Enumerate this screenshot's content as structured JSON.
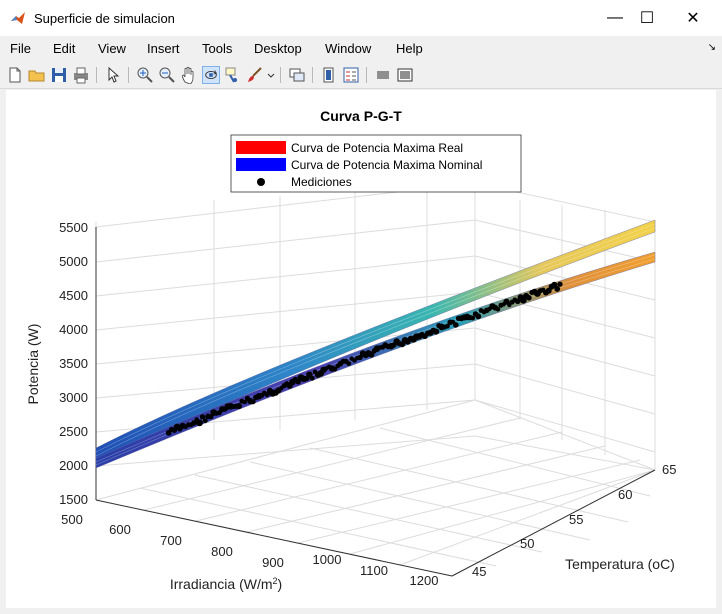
{
  "window": {
    "title": "Superficie de simulacion",
    "minimize_glyph": "—",
    "maximize_glyph": "☐",
    "close_glyph": "✕"
  },
  "menu": {
    "items": [
      "File",
      "Edit",
      "View",
      "Insert",
      "Tools",
      "Desktop",
      "Window",
      "Help"
    ],
    "overflow_glyph": "↘"
  },
  "toolbar": {
    "icons": [
      "new-figure-icon",
      "open-file-icon",
      "save-icon",
      "print-icon",
      "select-arrow-icon",
      "zoom-in-icon",
      "zoom-out-icon",
      "pan-hand-icon",
      "rotate-3d-icon",
      "data-cursor-icon",
      "brush-icon",
      "brush-dropdown-icon",
      "link-plot-icon",
      "colorbar-icon",
      "legend-icon",
      "hide-plot-tools-icon",
      "show-plot-tools-icon"
    ],
    "active": "rotate-3d-icon"
  },
  "chart_data": {
    "type": "surface3d",
    "title": "Curva P-G-T",
    "xlabel": "Irradiancia (W/m",
    "xlabel_sup": "2",
    "xlabel_end": ")",
    "ylabel": "Temperatura (oC)",
    "zlabel": "Potencia (W)",
    "x_ticks": [
      "500",
      "600",
      "700",
      "800",
      "900",
      "1000",
      "1100",
      "1200"
    ],
    "y_ticks": [
      "45",
      "50",
      "55",
      "60",
      "65"
    ],
    "z_ticks": [
      "1500",
      "2000",
      "2500",
      "3000",
      "3500",
      "4000",
      "4500",
      "5000",
      "5500"
    ],
    "xlim": [
      500,
      1200
    ],
    "ylim": [
      45,
      65
    ],
    "zlim": [
      1500,
      5500
    ],
    "grid": true,
    "legend_position": "top-center",
    "series": [
      {
        "name": "Curva de Potencia Maxima Real",
        "color": "#ff0000",
        "marker": "patch"
      },
      {
        "name": "Curva de Potencia Maxima Nominal",
        "color": "#0000ff",
        "marker": "patch"
      },
      {
        "name": "Mediciones",
        "color": "#000000",
        "marker": "dot"
      }
    ]
  }
}
